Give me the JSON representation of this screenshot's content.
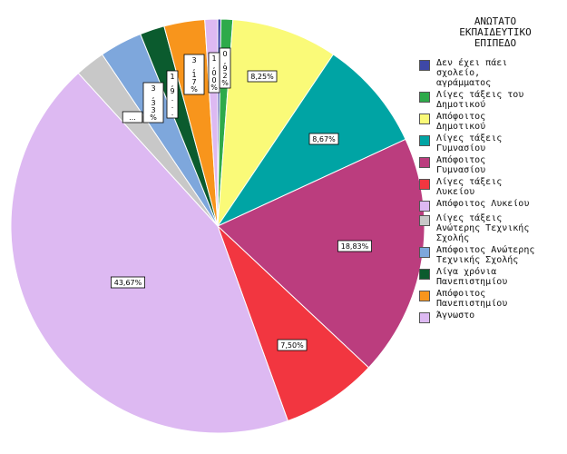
{
  "chart_data": {
    "type": "pie",
    "legend_title": "ΑΝΩΤΑΤΟ\nΕΚΠΑΙΔΕΥΤΙΚΟ\nΕΠΙΠΕΔΟ",
    "legend_position": "right",
    "slices": [
      {
        "name": "Δεν έχει πάει σχολείο, αγράμματος",
        "legend": "Δεν έχει πάει\nσχολείο,\nαγράμματος",
        "value": 0.25,
        "color": "#3e48a7",
        "label": ""
      },
      {
        "name": "Λίγες τάξεις του Δημοτικού",
        "legend": "Λίγες τάξεις του\nΔημοτικού",
        "value": 0.92,
        "color": "#2eaa4a",
        "label": "0,92%"
      },
      {
        "name": "Απόφοιτος Δημοτικού",
        "legend": "Απόφοιτος\nΔημοτικού",
        "value": 8.25,
        "color": "#fafa78",
        "label": "8,25%"
      },
      {
        "name": "Λίγες τάξεις Γυμνασίου",
        "legend": "Λίγες τάξεις\nΓυμνασίου",
        "value": 8.67,
        "color": "#00a4a4",
        "label": "8,67%"
      },
      {
        "name": "Απόφοιτος Γυμνασίου",
        "legend": "Απόφοιτος\nΓυμνασίου",
        "value": 18.83,
        "color": "#bb3d7e",
        "label": "18,83%"
      },
      {
        "name": "Λίγες τάξεις Λυκείου",
        "legend": "Λίγες τάξεις\nΛυκείου",
        "value": 7.5,
        "color": "#f23640",
        "label": "7,50%"
      },
      {
        "name": "Απόφοιτος Λυκείου",
        "legend": "Απόφοιτος Λυκείου",
        "value": 43.67,
        "color": "#ddb9f2",
        "label": "43,67%"
      },
      {
        "name": "Λίγες τάξεις Ανώτερης Τεχνικής Σχολής",
        "legend": "Λίγες τάξεις\nΑνώτερης Τεχνικής\nΣχολής",
        "value": 2.33,
        "color": "#c8c8c8",
        "label": "..."
      },
      {
        "name": "Απόφοιτος Ανώτερης Τεχνικής Σχολής",
        "legend": "Απόφοιτος Ανώτερης\nΤεχνικής Σχολής",
        "value": 3.33,
        "color": "#7ea7dc",
        "label": "3,33%"
      },
      {
        "name": "Λίγα χρόνια Πανεπιστημίου",
        "legend": "Λίγα χρόνια\nΠανεπιστημίου",
        "value": 1.92,
        "color": "#0b5b2e",
        "label": "1,9..."
      },
      {
        "name": "Απόφοιτος Πανεπιστημίου",
        "legend": "Απόφοιτος\nΠανεπιστημίου",
        "value": 3.17,
        "color": "#f8951c",
        "label": "3,17%"
      },
      {
        "name": "Άγνωστο",
        "legend": "Άγνωστο",
        "value": 1.0,
        "color": "#ddb9f2",
        "label": "1,00%"
      }
    ]
  }
}
